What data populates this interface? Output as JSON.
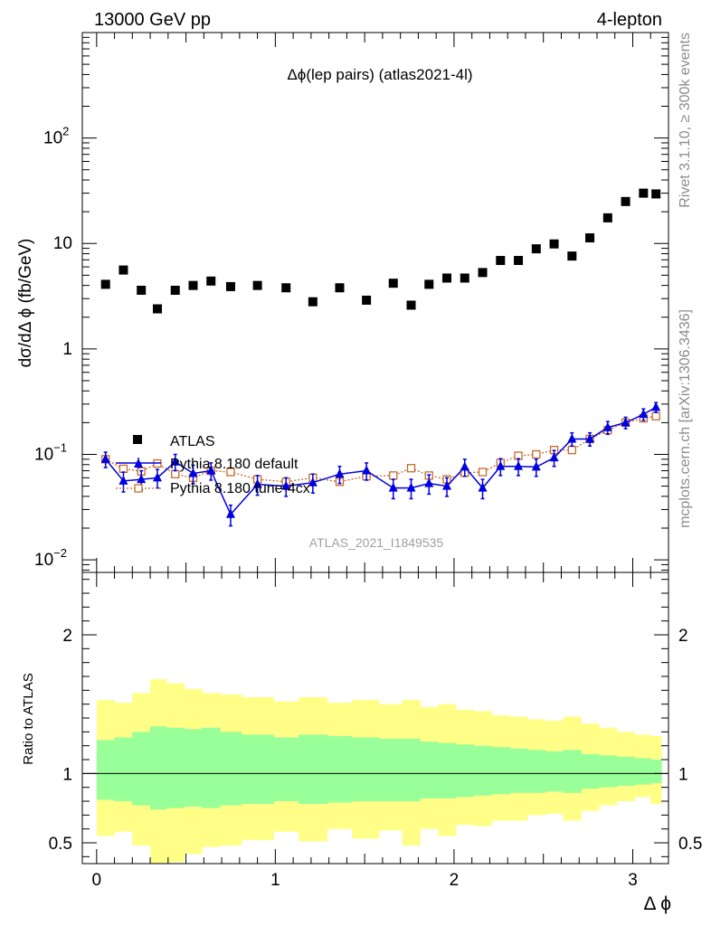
{
  "header": {
    "left_label": "13000 GeV pp",
    "right_label": "4-lepton"
  },
  "side_labels": {
    "rivet": "Rivet 3.1.10, ≥ 300k events",
    "mcplots": "mcplots.cern.ch [arXiv:1306.3436]"
  },
  "chart_data": [
    {
      "type": "scatter",
      "title": "Δϕ(lep pairs) (atlas2021-4l)",
      "watermark": "ATLAS_2021_I1849535",
      "xlabel": "Δ ϕ",
      "ylabel": "dσ/dΔ ϕ (fb/GeV)",
      "yscale": "log",
      "xlim": [
        -0.08,
        3.2
      ],
      "ylim": [
        0.0076,
        1000
      ],
      "yticks": [
        {
          "v": 0.01,
          "base": "10",
          "exp": "−2"
        },
        {
          "v": 0.1,
          "base": "10",
          "exp": "−1"
        },
        {
          "v": 1,
          "base": "1",
          "exp": ""
        },
        {
          "v": 10,
          "base": "10",
          "exp": ""
        },
        {
          "v": 100,
          "base": "10",
          "exp": "2"
        }
      ],
      "x": [
        0.05,
        0.15,
        0.25,
        0.34,
        0.44,
        0.54,
        0.64,
        0.75,
        0.9,
        1.06,
        1.21,
        1.36,
        1.51,
        1.66,
        1.76,
        1.86,
        1.96,
        2.06,
        2.16,
        2.26,
        2.36,
        2.46,
        2.56,
        2.66,
        2.76,
        2.86,
        2.96,
        3.06,
        3.13
      ],
      "xerr": [
        0.05,
        0.05,
        0.05,
        0.05,
        0.05,
        0.05,
        0.05,
        0.06,
        0.09,
        0.07,
        0.08,
        0.07,
        0.08,
        0.07,
        0.05,
        0.05,
        0.05,
        0.05,
        0.05,
        0.05,
        0.05,
        0.05,
        0.05,
        0.05,
        0.05,
        0.05,
        0.05,
        0.05,
        0.03
      ],
      "series": [
        {
          "name": "ATLAS",
          "color": "#000000",
          "marker": "square",
          "values": [
            4.1,
            5.6,
            3.6,
            2.4,
            3.6,
            4.0,
            4.4,
            3.9,
            4.0,
            3.8,
            2.8,
            3.8,
            2.9,
            4.2,
            2.6,
            4.1,
            4.7,
            4.7,
            5.3,
            6.9,
            6.9,
            8.9,
            9.9,
            7.6,
            11.3,
            17.5,
            25.0,
            30.0,
            29.5
          ]
        },
        {
          "name": "Pythia 8.180 default",
          "color": "#0000e0",
          "marker": "triangle",
          "values": [
            0.09,
            0.056,
            0.058,
            0.06,
            0.085,
            0.066,
            0.07,
            0.027,
            0.052,
            0.05,
            0.054,
            0.065,
            0.07,
            0.048,
            0.048,
            0.053,
            0.05,
            0.076,
            0.048,
            0.077,
            0.077,
            0.076,
            0.093,
            0.14,
            0.14,
            0.18,
            0.2,
            0.24,
            0.28
          ],
          "errors": [
            0.015,
            0.012,
            0.012,
            0.012,
            0.015,
            0.013,
            0.013,
            0.006,
            0.011,
            0.01,
            0.011,
            0.012,
            0.013,
            0.01,
            0.01,
            0.011,
            0.01,
            0.014,
            0.01,
            0.014,
            0.014,
            0.014,
            0.016,
            0.02,
            0.02,
            0.025,
            0.025,
            0.03,
            0.03
          ]
        },
        {
          "name": "Pythia 8.180 tune-4cx",
          "color": "#c46a2d",
          "marker": "open-square",
          "values": [
            0.09,
            0.073,
            0.069,
            0.082,
            0.065,
            0.06,
            0.07,
            0.068,
            0.058,
            0.055,
            0.06,
            0.055,
            0.062,
            0.063,
            0.074,
            0.063,
            0.058,
            0.067,
            0.068,
            0.083,
            0.097,
            0.1,
            0.11,
            0.11,
            0.14,
            0.17,
            0.2,
            0.22,
            0.23
          ]
        }
      ]
    },
    {
      "type": "area",
      "ylabel": "Ratio to ATLAS",
      "xlabel": "Δ ϕ",
      "ylim": [
        0.35,
        2.45
      ],
      "yticks": [
        0.5,
        1,
        2
      ],
      "xticks": [
        0,
        1,
        2,
        3
      ],
      "reference_line": 1,
      "bin_edges": [
        0.0,
        0.1,
        0.2,
        0.3,
        0.39,
        0.49,
        0.59,
        0.69,
        0.81,
        0.99,
        1.13,
        1.29,
        1.43,
        1.58,
        1.71,
        1.81,
        1.91,
        2.01,
        2.11,
        2.21,
        2.31,
        2.41,
        2.51,
        2.61,
        2.71,
        2.81,
        2.91,
        3.01,
        3.1,
        3.16
      ],
      "bands": [
        {
          "name": "stat",
          "color": "#99ff99",
          "lower": [
            0.81,
            0.8,
            0.77,
            0.74,
            0.75,
            0.76,
            0.75,
            0.77,
            0.78,
            0.8,
            0.78,
            0.79,
            0.8,
            0.8,
            0.8,
            0.82,
            0.82,
            0.83,
            0.84,
            0.85,
            0.86,
            0.86,
            0.87,
            0.86,
            0.89,
            0.9,
            0.91,
            0.92,
            0.93
          ],
          "upper": [
            1.24,
            1.26,
            1.3,
            1.34,
            1.33,
            1.32,
            1.33,
            1.3,
            1.28,
            1.26,
            1.28,
            1.27,
            1.26,
            1.25,
            1.25,
            1.23,
            1.22,
            1.21,
            1.2,
            1.19,
            1.18,
            1.17,
            1.16,
            1.17,
            1.14,
            1.13,
            1.12,
            1.11,
            1.1
          ]
        },
        {
          "name": "total",
          "color": "#ffff88",
          "lower": [
            0.55,
            0.58,
            0.48,
            0.35,
            0.36,
            0.42,
            0.47,
            0.48,
            0.52,
            0.58,
            0.51,
            0.6,
            0.53,
            0.59,
            0.48,
            0.6,
            0.55,
            0.63,
            0.62,
            0.66,
            0.66,
            0.7,
            0.71,
            0.66,
            0.73,
            0.77,
            0.8,
            0.83,
            0.78
          ],
          "upper": [
            1.53,
            1.51,
            1.58,
            1.68,
            1.65,
            1.61,
            1.58,
            1.57,
            1.55,
            1.52,
            1.55,
            1.51,
            1.53,
            1.5,
            1.53,
            1.48,
            1.5,
            1.46,
            1.45,
            1.42,
            1.41,
            1.39,
            1.38,
            1.41,
            1.36,
            1.33,
            1.3,
            1.28,
            1.27
          ]
        }
      ]
    }
  ]
}
